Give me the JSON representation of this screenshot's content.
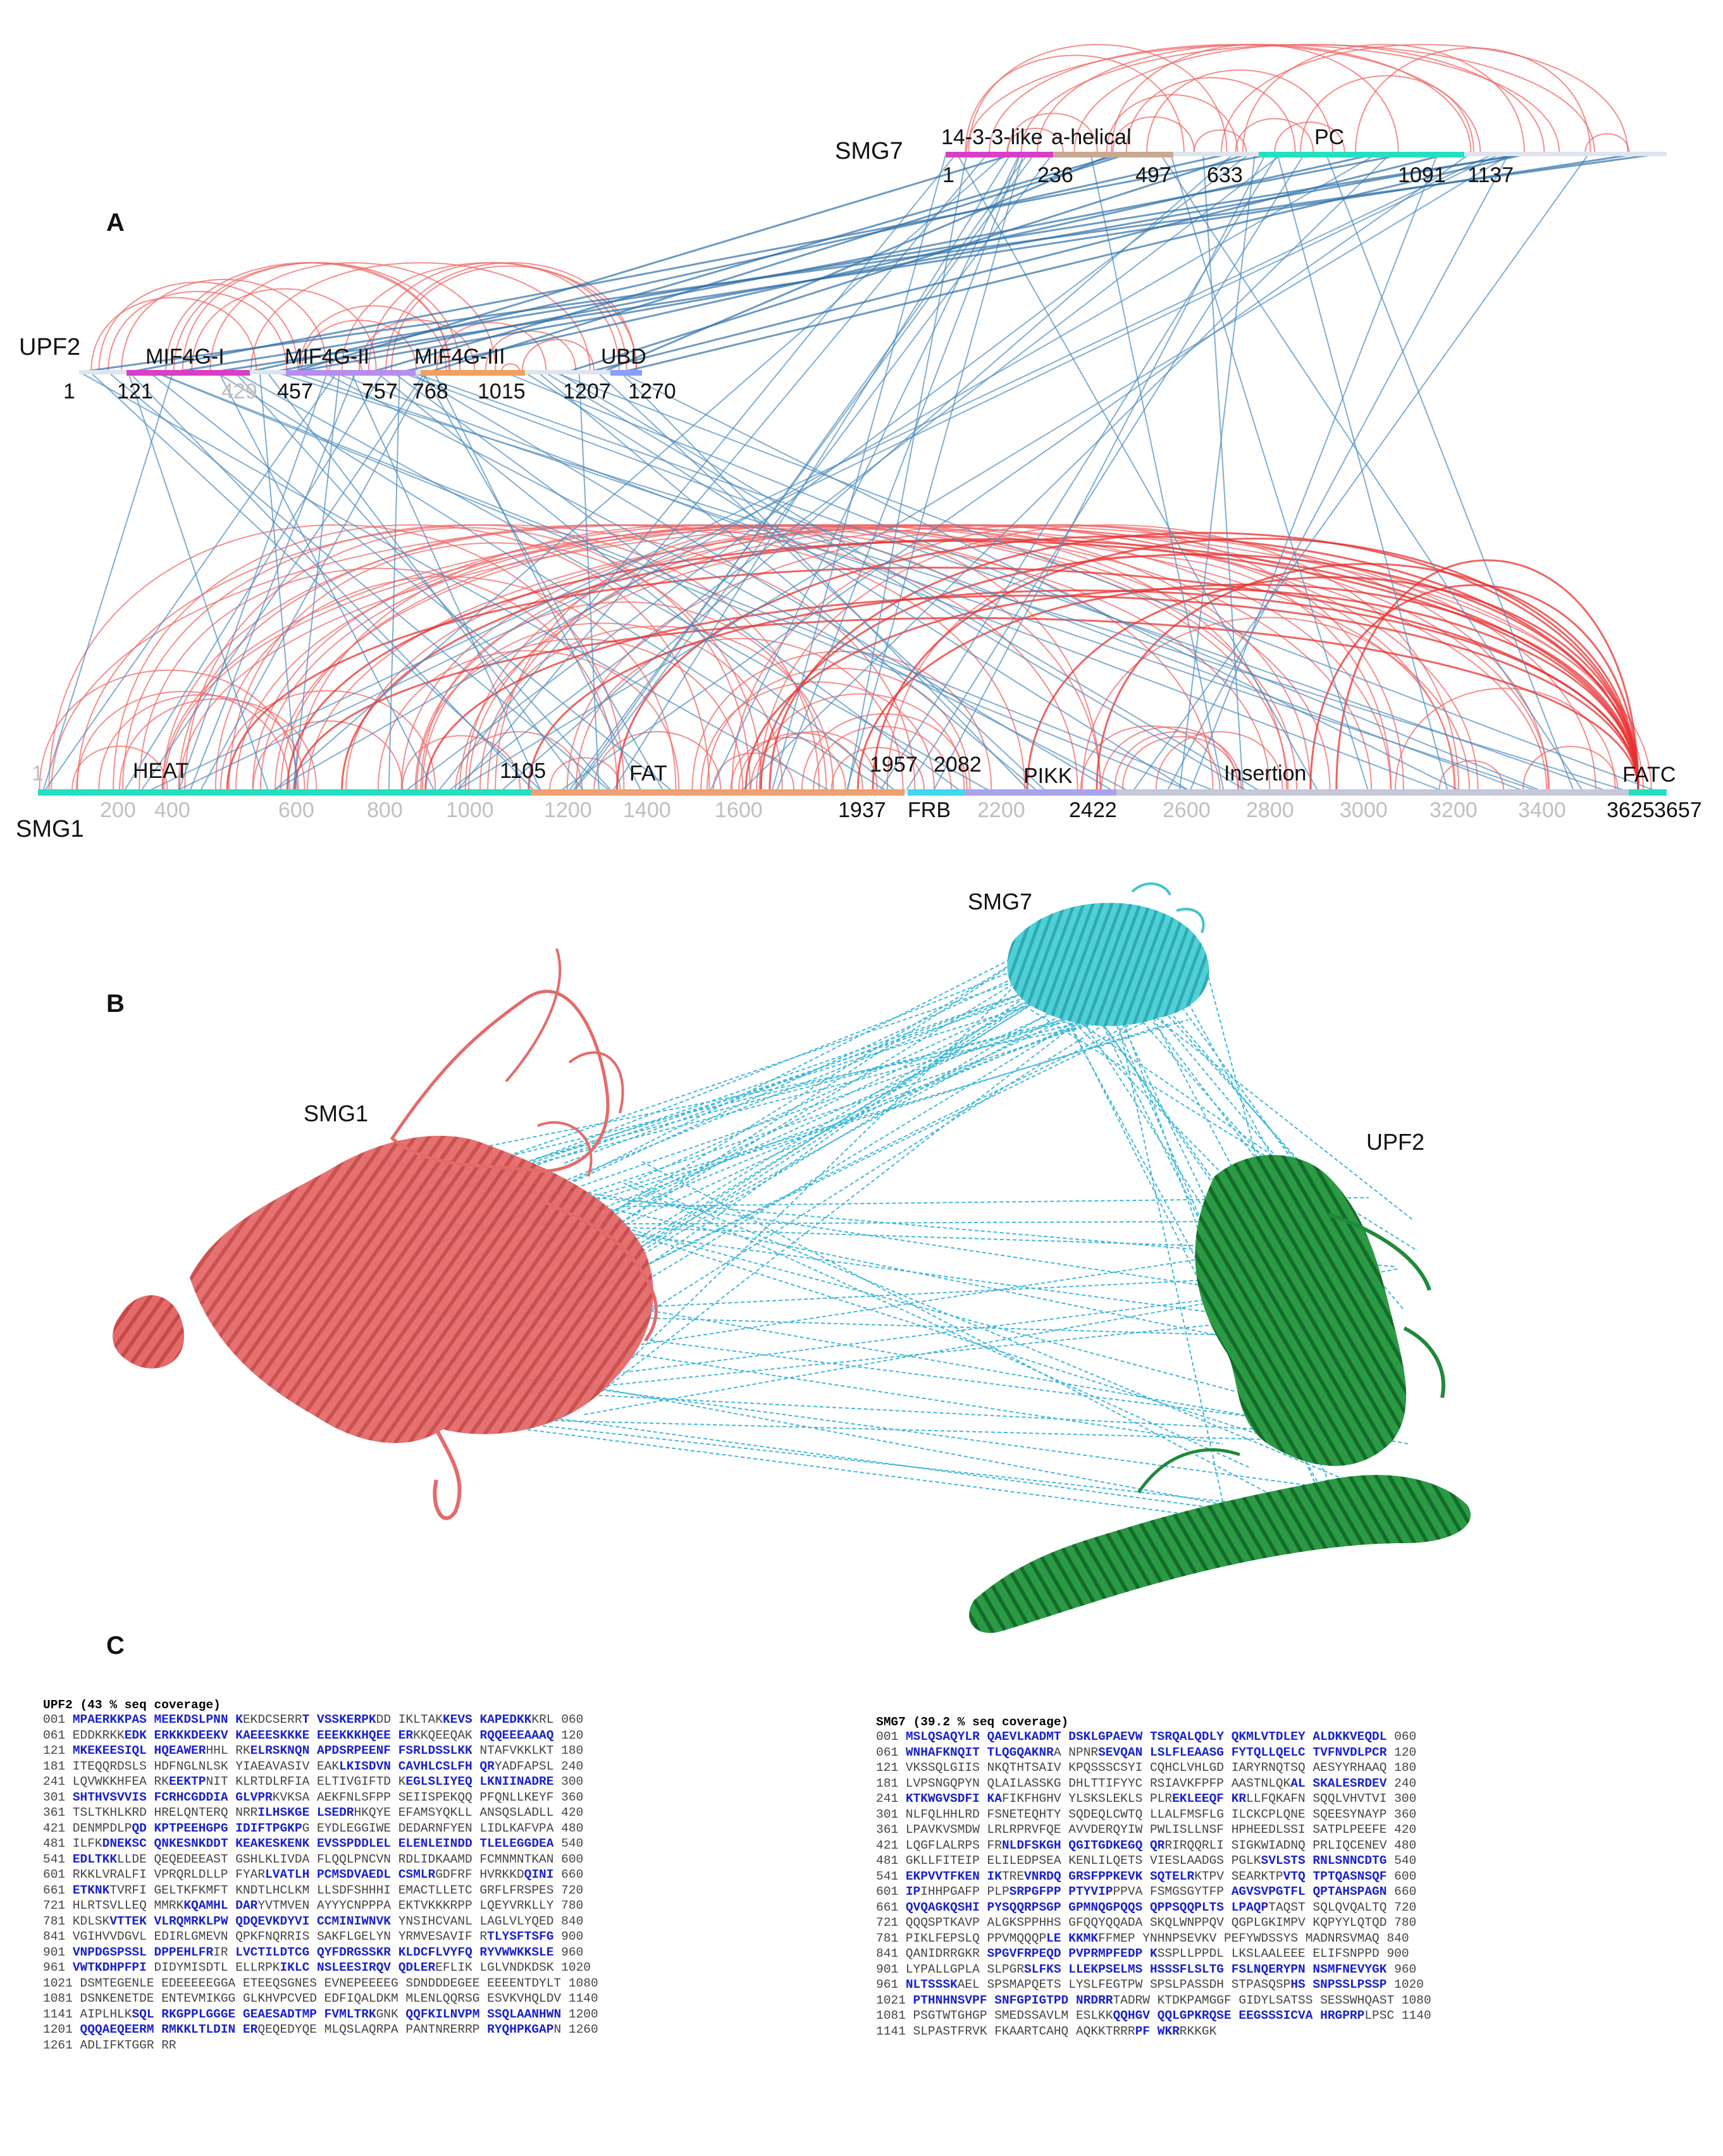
{
  "panel_a": {
    "letter": "A",
    "proteins": {
      "smg7": {
        "name": "SMG7",
        "domains": [
          "14-3-3-like",
          "a-helical",
          "PC"
        ],
        "positions": [
          "1",
          "236",
          "497",
          "633",
          "1091",
          "1137"
        ],
        "colors": {
          "14-3-3-like": "#d93ec9",
          "a-helical": "#b69a87",
          "PC": "#22e0c0"
        }
      },
      "upf2": {
        "name": "UPF2",
        "domains": [
          "MIF4G-I",
          "MIF4G-II",
          "MIF4G-III",
          "UBD"
        ],
        "positions": [
          "1",
          "121",
          "429",
          "457",
          "757",
          "768",
          "1015",
          "1207",
          "1270"
        ],
        "colors": {
          "MIF4G-I": "#d93ec9",
          "MIF4G-II": "#b78ef0",
          "MIF4G-III": "#f0a060",
          "UBD": "#8aa0ff"
        }
      },
      "smg1": {
        "name": "SMG1",
        "domains": [
          "HEAT",
          "FAT",
          "FRB",
          "PIKK",
          "Insertion",
          "FATC"
        ],
        "positions": [
          "1105",
          "1957",
          "2082",
          "1937",
          "2422",
          "3625",
          "3657"
        ],
        "ticks": [
          "1",
          "200",
          "400",
          "600",
          "800",
          "1000",
          "1200",
          "1400",
          "1600",
          "2200",
          "2600",
          "2800",
          "3000",
          "3200",
          "3400"
        ],
        "colors": {
          "HEAT": "#22e0c0",
          "FAT": "#f0a070",
          "FRB": "#3fd8f0",
          "PIKK": "#a8a4ee",
          "Insertion": "#c4c8d8",
          "FATC": "#22e0c0"
        }
      }
    },
    "link_colors": {
      "intra": "#f06868",
      "inter": "#4b8bbd"
    }
  },
  "panel_b": {
    "letter": "B",
    "labels": {
      "smg1": "SMG1",
      "smg7": "SMG7",
      "upf2": "UPF2"
    },
    "colors": {
      "smg1": "#e46a6a",
      "smg7": "#3fc4cc",
      "upf2": "#1f8a3a",
      "links": "#3fb8d8"
    }
  },
  "panel_c": {
    "letter": "C",
    "upf2": {
      "title": "UPF2 (43 % seq coverage)",
      "lines": [
        [
          {
            "t": "001 ",
            "c": 0
          },
          {
            "t": "MPAERKKPAS MEEKDSLPNN K",
            "c": 1
          },
          {
            "t": "EKDCSERR",
            "c": 0
          },
          {
            "t": "T VSSKERPK",
            "c": 1
          },
          {
            "t": "DD IKLTAK",
            "c": 0
          },
          {
            "t": "KEVS KAPEDKK",
            "c": 1
          },
          {
            "t": "KRL 060",
            "c": 0
          }
        ],
        [
          {
            "t": "061 EDDKRKK",
            "c": 0
          },
          {
            "t": "EDK ERKKKDEEKV KAEEESKKKE EEEKKKHQEE ER",
            "c": 1
          },
          {
            "t": "KKQEEQAK ",
            "c": 0
          },
          {
            "t": "RQQEEEAAAQ",
            "c": 1
          },
          {
            "t": " 120",
            "c": 0
          }
        ],
        [
          {
            "t": "121 ",
            "c": 0
          },
          {
            "t": "MKEKEESIQL HQEAWER",
            "c": 1
          },
          {
            "t": "HHL RK",
            "c": 0
          },
          {
            "t": "ELRSKNQN APDSRPEENF FSRLDSSLKK",
            "c": 1
          },
          {
            "t": " NTAFVKKLKT 180",
            "c": 0
          }
        ],
        [
          {
            "t": "181 ITEQQRDSLS HDFNGLNLSK YIAEAVASIV EAK",
            "c": 0
          },
          {
            "t": "LKISDVN CAVHLCSLFH QR",
            "c": 1
          },
          {
            "t": "YADFAPSL 240",
            "c": 0
          }
        ],
        [
          {
            "t": "241 LQVWKKHFEA RK",
            "c": 0
          },
          {
            "t": "EEKTP",
            "c": 1
          },
          {
            "t": "NIT KLRTDLRFIA ELTIVGIFTD K",
            "c": 0
          },
          {
            "t": "EGLSLIYEQ LKNIINADRE",
            "c": 1
          },
          {
            "t": " 300",
            "c": 0
          }
        ],
        [
          {
            "t": "301 ",
            "c": 0
          },
          {
            "t": "SHTHVSVVIS FCRHCGDDIA GLVPR",
            "c": 1
          },
          {
            "t": "KVKSA AEKFNLSFPP SEIISPEKQQ PFQNLLKEYF 360",
            "c": 0
          }
        ],
        [
          {
            "t": "361 TSLTKHLKRD HRELQNTERQ NRR",
            "c": 0
          },
          {
            "t": "ILHSKGE LSEDR",
            "c": 1
          },
          {
            "t": "HKQYE EFAMSYQKLL ANSQSLADLL 420",
            "c": 0
          }
        ],
        [
          {
            "t": "421 DENMPDLP",
            "c": 0
          },
          {
            "t": "QD KPTPEEHGPG IDIFTPGKP",
            "c": 1
          },
          {
            "t": "G EYDLEGGIWE DEDARNFYEN LIDLKAFVPA 480",
            "c": 0
          }
        ],
        [
          {
            "t": "481 ILFK",
            "c": 0
          },
          {
            "t": "DNEKSC QNKESNKDDT KEAKESKENK EVSSPDDLEL ELENLEINDD TLELEGGDEA",
            "c": 1
          },
          {
            "t": " 540",
            "c": 0
          }
        ],
        [
          {
            "t": "541 ",
            "c": 0
          },
          {
            "t": "EDLTKK",
            "c": 1
          },
          {
            "t": "LLDE QEQEDEEAST GSHLKLIVDA FLQQLPNCVN RDLIDKAAMD FCMNMNTKAN 600",
            "c": 0
          }
        ],
        [
          {
            "t": "601 RKKLVRALFI VPRQRLDLLP FYAR",
            "c": 0
          },
          {
            "t": "LVATLH PCMSDVAEDL CSMLR",
            "c": 1
          },
          {
            "t": "GDFRF HVRKKD",
            "c": 0
          },
          {
            "t": "QINI",
            "c": 1
          },
          {
            "t": " 660",
            "c": 0
          }
        ],
        [
          {
            "t": "661 ",
            "c": 0
          },
          {
            "t": "ETKNK",
            "c": 1
          },
          {
            "t": "TVRFI GELTKFKMFT KNDTLHCLKM LLSDFSHHHI EMACTLLETC GRFLFRSPES 720",
            "c": 0
          }
        ],
        [
          {
            "t": "721 HLRTSVLLEQ MMRK",
            "c": 0
          },
          {
            "t": "KQAMHL DAR",
            "c": 1
          },
          {
            "t": "YVTMVEN AYYYCNPPPA EKTVKKKRPP LQEYVRKLLY 780",
            "c": 0
          }
        ],
        [
          {
            "t": "781 KDLSK",
            "c": 0
          },
          {
            "t": "VTTEK VLRQMRKLPW QDQEVKDYVI CCMINIWNVK",
            "c": 1
          },
          {
            "t": " YNSIHCVANL LAGLVLYQED 840",
            "c": 0
          }
        ],
        [
          {
            "t": "841 VGIHVVDGVL EDIRLGMEVN QPKFNQRRIS SAKFLGELYN YRMVESAVIF R",
            "c": 0
          },
          {
            "t": "TLYSFTSFG",
            "c": 1
          },
          {
            "t": " 900",
            "c": 0
          }
        ],
        [
          {
            "t": "901 ",
            "c": 0
          },
          {
            "t": "VNPDGSPSSL DPPEHLFR",
            "c": 1
          },
          {
            "t": "IR ",
            "c": 0
          },
          {
            "t": "LVCTILDTCG QYFDRGSSKR KLDCFLVYFQ RYVWWKKSLE",
            "c": 1
          },
          {
            "t": " 960",
            "c": 0
          }
        ],
        [
          {
            "t": "961 ",
            "c": 0
          },
          {
            "t": "VWTKDHPFPI",
            "c": 1
          },
          {
            "t": " DIDYMISDTL ELLRPK",
            "c": 0
          },
          {
            "t": "IKLC NSLEESIRQV QDLER",
            "c": 1
          },
          {
            "t": "EFLIK LGLVNDKDSK 1020",
            "c": 0
          }
        ],
        [
          {
            "t": "1021 DSMTEGENLE EDEEEEEGGA ETEEQSGNES EVNEPEEEEG SDNDDDEGEE EEEENTDYLT 1080",
            "c": 0
          }
        ],
        [
          {
            "t": "1081 DSNKENETDE ENTEVMIKGG GLKHVPCVED EDFIQALDKM MLENLQQRSG ESVKVHQLDV 1140",
            "c": 0
          }
        ],
        [
          {
            "t": "1141 AIPLHLK",
            "c": 0
          },
          {
            "t": "SQL RKGPPLGGGE GEAESADTMP FVMLTRK",
            "c": 1
          },
          {
            "t": "GNK ",
            "c": 0
          },
          {
            "t": "QQFKILNVPM SSQLAANHWN",
            "c": 1
          },
          {
            "t": " 1200",
            "c": 0
          }
        ],
        [
          {
            "t": "1201 ",
            "c": 0
          },
          {
            "t": "QQQAEQEERM RMKKLTLDIN ER",
            "c": 1
          },
          {
            "t": "QEQEDYQE MLQSLAQRPA PANTNRERRP ",
            "c": 0
          },
          {
            "t": "RYQHPKGAP",
            "c": 1
          },
          {
            "t": "N 1260",
            "c": 0
          }
        ],
        [
          {
            "t": "1261 ADLIFKTGGR RR",
            "c": 0
          }
        ]
      ]
    },
    "smg7": {
      "title": "SMG7 (39.2 % seq coverage)",
      "lines": [
        [
          {
            "t": "001 ",
            "c": 0
          },
          {
            "t": "MSLQSAQYLR QAEVLKADMT DSKLGPAEVW TSRQALQDLY QKMLVTDLEY ALDKKVEQDL",
            "c": 1
          },
          {
            "t": " 060",
            "c": 0
          }
        ],
        [
          {
            "t": "061 ",
            "c": 0
          },
          {
            "t": "WNHAFKNQIT TLQGQAKNR",
            "c": 1
          },
          {
            "t": "A NPNR",
            "c": 0
          },
          {
            "t": "SEVQAN LSLFLEAASG FYTQLLQELC TVFNVDLPCR",
            "c": 1
          },
          {
            "t": " 120",
            "c": 0
          }
        ],
        [
          {
            "t": "121 VKSSQLGIIS NKQTHTSAIV KPQSSSCSYI CQHCLVHLGD IARYRNQTSQ AESYYRHAAQ 180",
            "c": 0
          }
        ],
        [
          {
            "t": "181 LVPSNGQPYN QLAILASSKG DHLTTIFYYC RSIAVKFPFP AASTNLQK",
            "c": 0
          },
          {
            "t": "AL SKALESRDEV",
            "c": 1
          },
          {
            "t": " 240",
            "c": 0
          }
        ],
        [
          {
            "t": "241 ",
            "c": 0
          },
          {
            "t": "KTKWGVSDFI KA",
            "c": 1
          },
          {
            "t": "FIKFHGHV YLSKSLEKLS PLR",
            "c": 0
          },
          {
            "t": "EKLEEQF KR",
            "c": 1
          },
          {
            "t": "LLFQKAFN SQQLVHVTVI 300",
            "c": 0
          }
        ],
        [
          {
            "t": "301 NLFQLHHLRD FSNETEQHTY SQDEQLCWTQ LLALFMSFLG ILCKCPLQNE SQEESYNAYP 360",
            "c": 0
          }
        ],
        [
          {
            "t": "361 LPAVKVSMDW LRLRPRVFQE AVVDERQYIW PWLISLLNSF HPHEEDLSSI SATPLPEEFE 420",
            "c": 0
          }
        ],
        [
          {
            "t": "421 LQGFLALRPS FR",
            "c": 0
          },
          {
            "t": "NLDFSKGH QGITGDKEGQ QR",
            "c": 1
          },
          {
            "t": "RIRQQRLI SIGKWIADNQ PRLIQCENEV 480",
            "c": 0
          }
        ],
        [
          {
            "t": "481 GKLLFITEIP ELILEDPSEA KENLILQETS VIESLAADGS PGLK",
            "c": 0
          },
          {
            "t": "SVLSTS RNLSNNCDTG",
            "c": 1
          },
          {
            "t": " 540",
            "c": 0
          }
        ],
        [
          {
            "t": "541 ",
            "c": 0
          },
          {
            "t": "EKPVVTFKEN IK",
            "c": 1
          },
          {
            "t": "TRE",
            "c": 0
          },
          {
            "t": "VNRDQ GRSFPPKEVK SQTELR",
            "c": 1
          },
          {
            "t": "KTPV SEARKTP",
            "c": 0
          },
          {
            "t": "VTQ TPTQASNSQF",
            "c": 1
          },
          {
            "t": " 600",
            "c": 0
          }
        ],
        [
          {
            "t": "601 ",
            "c": 0
          },
          {
            "t": "IP",
            "c": 1
          },
          {
            "t": "IHHPGAFP PLP",
            "c": 0
          },
          {
            "t": "SRPGFPP PTYVIP",
            "c": 1
          },
          {
            "t": "PPVA FSMGSGYTFP ",
            "c": 0
          },
          {
            "t": "AGVSVPGTFL QPTAHSPAGN",
            "c": 1
          },
          {
            "t": " 660",
            "c": 0
          }
        ],
        [
          {
            "t": "661 ",
            "c": 0
          },
          {
            "t": "QVQAGKQSHI PYSQQRPSGP GPMNQGPQQS QPPSQQPLTS LPAQP",
            "c": 1
          },
          {
            "t": "TAQST SQLQVQALTQ 720",
            "c": 0
          }
        ],
        [
          {
            "t": "721 QQQSPTKAVP ALGKSPPHHS GFQQYQQADA SKQLWNPPQV QGPLGKIMPV KQPYYLQTQD 780",
            "c": 0
          }
        ],
        [
          {
            "t": "781 PIKLFEPSLQ PPVMQQQP",
            "c": 0
          },
          {
            "t": "LE KKMK",
            "c": 1
          },
          {
            "t": "FFMEP YNHNPSEVKV PEFYWDSSYS MADNRSVMAQ 840",
            "c": 0
          }
        ],
        [
          {
            "t": "841 QANIDRRGKR ",
            "c": 0
          },
          {
            "t": "SPGVFRPEQD PVPRMPFEDP K",
            "c": 1
          },
          {
            "t": "SSPLLPPDL LKSLAALEEE ELIFSNPPD 900",
            "c": 0
          }
        ],
        [
          {
            "t": "901 LYPALLGPLA SLPGR",
            "c": 0
          },
          {
            "t": "SLFKS LLEKPSELMS HSSSFLSLTG FSLNQERYPN NSMFNEVYGK",
            "c": 1
          },
          {
            "t": " 960",
            "c": 0
          }
        ],
        [
          {
            "t": "961 ",
            "c": 0
          },
          {
            "t": "NLTSSSK",
            "c": 1
          },
          {
            "t": "AEL SPSMAPQETS LYSLFEGTPW SPSLPASSDH STPASQSP",
            "c": 0
          },
          {
            "t": "HS SNPSSLPSSP",
            "c": 1
          },
          {
            "t": " 1020",
            "c": 0
          }
        ],
        [
          {
            "t": "1021 ",
            "c": 0
          },
          {
            "t": "PTHNHNSVPF SNFGPIGTPD NRDRR",
            "c": 1
          },
          {
            "t": "TADRW KTDKPAMGGF GIDYLSATSS SESSWHQAST 1080",
            "c": 0
          }
        ],
        [
          {
            "t": "1081 PSGTWTGHGP SMEDSSAVLM ESLKK",
            "c": 0
          },
          {
            "t": "QQHGV QQLGPKRQSE EEGSSSICVA HRGPRP",
            "c": 1
          },
          {
            "t": "LPSC 1140",
            "c": 0
          }
        ],
        [
          {
            "t": "1141 SLPASTFRVK FKAARTCAHQ AQKKTRRR",
            "c": 0
          },
          {
            "t": "PF WKR",
            "c": 1
          },
          {
            "t": "RKKGK",
            "c": 0
          }
        ]
      ]
    }
  }
}
